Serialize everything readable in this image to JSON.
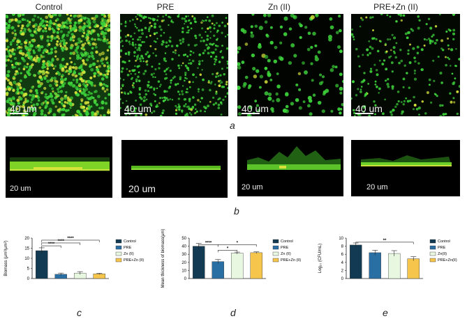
{
  "figure": {
    "row_a_titles": [
      "Control",
      "PRE",
      "Zn (II)",
      "PRE+Zn (II)"
    ],
    "row_a_scale": "40 um",
    "row_b_scales": [
      "20 um",
      "20 um",
      "20 um",
      "20 um"
    ],
    "panel_letters": {
      "a": "a",
      "b": "b",
      "c": "c",
      "d": "d",
      "e": "e"
    }
  },
  "colors": {
    "control": "#123a52",
    "pre": "#2a6fa3",
    "zn": "#e8f8e0",
    "prezn": "#f6c54b",
    "fluor_green": "#3dd23a",
    "fluor_yellow": "#d6e23a"
  },
  "chart_data": [
    {
      "type": "bar",
      "id": "c",
      "categories": [
        "Control",
        "PRE",
        "Zn (II)",
        "PRE+Zn (II)"
      ],
      "values": [
        13.8,
        2.1,
        2.7,
        2.3
      ],
      "errors": [
        1.4,
        0.6,
        0.7,
        0.3
      ],
      "ylabel": "Biomass (μm³/μm²)",
      "ylim": [
        0,
        20
      ],
      "yticks": [
        "0",
        "5",
        "10",
        "15",
        "20"
      ],
      "legend": [
        "Control",
        "PRE",
        "Zn (II)",
        "PRE+Zn (II)"
      ],
      "significance": [
        "****",
        "****",
        "****"
      ]
    },
    {
      "type": "bar",
      "id": "d",
      "categories": [
        "Control",
        "PRE",
        "Zn (II)",
        "PRE+Zn (II)"
      ],
      "values": [
        40,
        21,
        31.5,
        32
      ],
      "errors": [
        3.5,
        2.5,
        1.2,
        1.0
      ],
      "ylabel": "Mean thickness of biomass(μm)",
      "ylim": [
        0,
        50
      ],
      "yticks": [
        "0",
        "10",
        "20",
        "30",
        "40",
        "50"
      ],
      "legend": [
        "Control",
        "PRE",
        "Zn (II)",
        "PRE+Zn (II)"
      ],
      "significance": [
        "****",
        "*",
        "*"
      ]
    },
    {
      "type": "bar",
      "id": "e",
      "categories": [
        "Control",
        "PRE",
        "Zn(II)",
        "PRE+Zn(II)"
      ],
      "values": [
        8.3,
        6.4,
        6.2,
        4.9
      ],
      "errors": [
        0.5,
        0.6,
        0.7,
        0.5
      ],
      "ylabel": "Log₁₀ (CFU/mL)",
      "ylim": [
        0,
        10
      ],
      "yticks": [
        "0",
        "2",
        "4",
        "6",
        "8",
        "10"
      ],
      "legend": [
        "Control",
        "PRE",
        "Zn(II)",
        "PRE+Zn(II)"
      ],
      "significance": [
        "**"
      ]
    }
  ]
}
